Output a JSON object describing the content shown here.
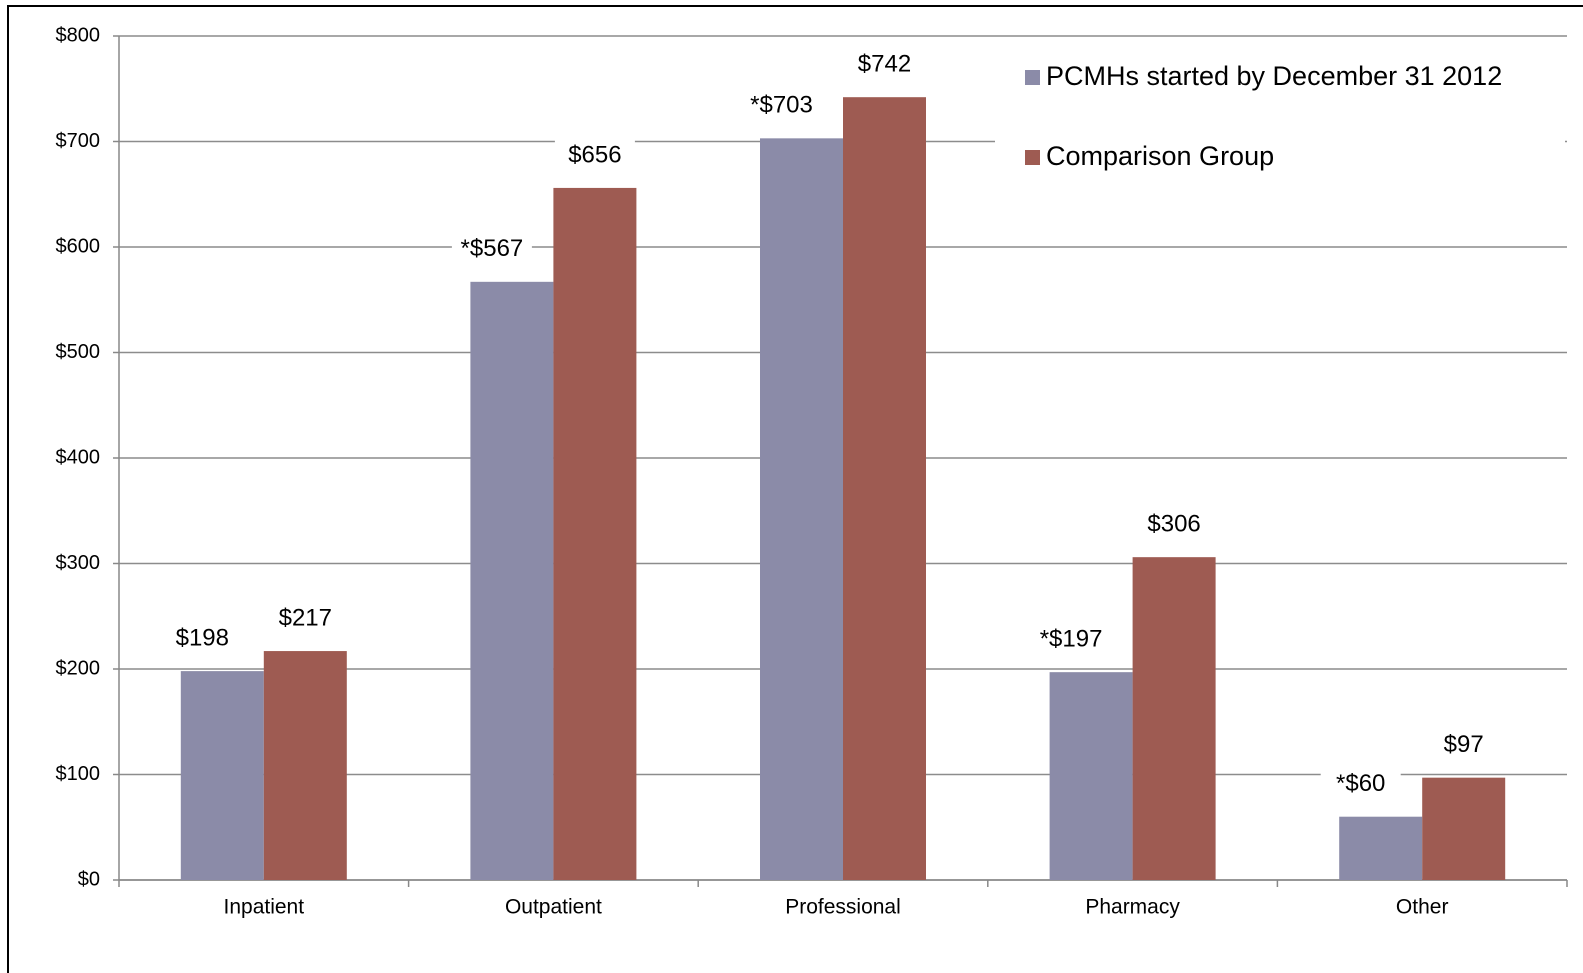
{
  "chart_data": {
    "type": "bar",
    "categories": [
      "Inpatient",
      "Outpatient",
      "Professional",
      "Pharmacy",
      "Other"
    ],
    "series": [
      {
        "name": "PCMHs started by December 31 2012",
        "color": "#8b8ba8",
        "values": [
          198,
          567,
          703,
          197,
          60
        ],
        "value_labels": [
          "$198",
          "*$567",
          "*$703",
          "*$197",
          "*$60"
        ]
      },
      {
        "name": "Comparison Group",
        "color": "#9e5b52",
        "values": [
          217,
          656,
          742,
          306,
          97
        ],
        "value_labels": [
          "$217",
          "$656",
          "$742",
          "$306",
          "$97"
        ]
      }
    ],
    "ylim": [
      0,
      800
    ],
    "yticks": [
      {
        "value": 0,
        "label": "$0"
      },
      {
        "value": 100,
        "label": "$100"
      },
      {
        "value": 200,
        "label": "$200"
      },
      {
        "value": 300,
        "label": "$300"
      },
      {
        "value": 400,
        "label": "$400"
      },
      {
        "value": 500,
        "label": "$500"
      },
      {
        "value": 600,
        "label": "$600"
      },
      {
        "value": 700,
        "label": "$700"
      },
      {
        "value": 800,
        "label": "$800"
      }
    ],
    "grid": true,
    "legend": "top-right"
  }
}
